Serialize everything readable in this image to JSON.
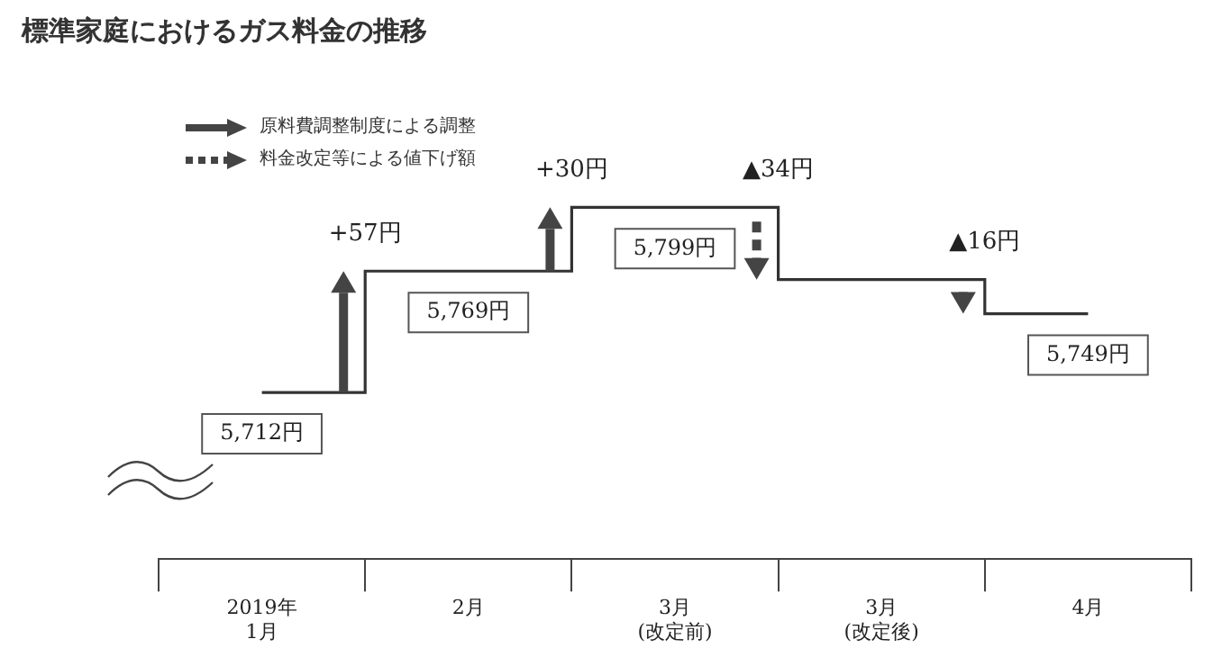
{
  "chart_data": {
    "type": "step",
    "title": "標準家庭におけるガス料金の推移",
    "categories": [
      "2019年\n1月",
      "2月",
      "3月\n(改定前)",
      "3月\n(改定後)",
      "4月"
    ],
    "series": [
      {
        "color": "#333333",
        "values": [
          5712,
          5769,
          5799,
          5765,
          5749
        ],
        "value_labels": [
          "5,712円",
          "5,769円",
          "5,799円",
          null,
          "5,749円"
        ]
      }
    ],
    "annotations": [
      "原料費調整制度による調整",
      "料金改定等による値下げ額",
      "+57円",
      "+30円",
      "▲34円",
      "▲16円"
    ],
    "grid": false,
    "legend": false,
    "tick_labels": "x",
    "marker": "none"
  }
}
